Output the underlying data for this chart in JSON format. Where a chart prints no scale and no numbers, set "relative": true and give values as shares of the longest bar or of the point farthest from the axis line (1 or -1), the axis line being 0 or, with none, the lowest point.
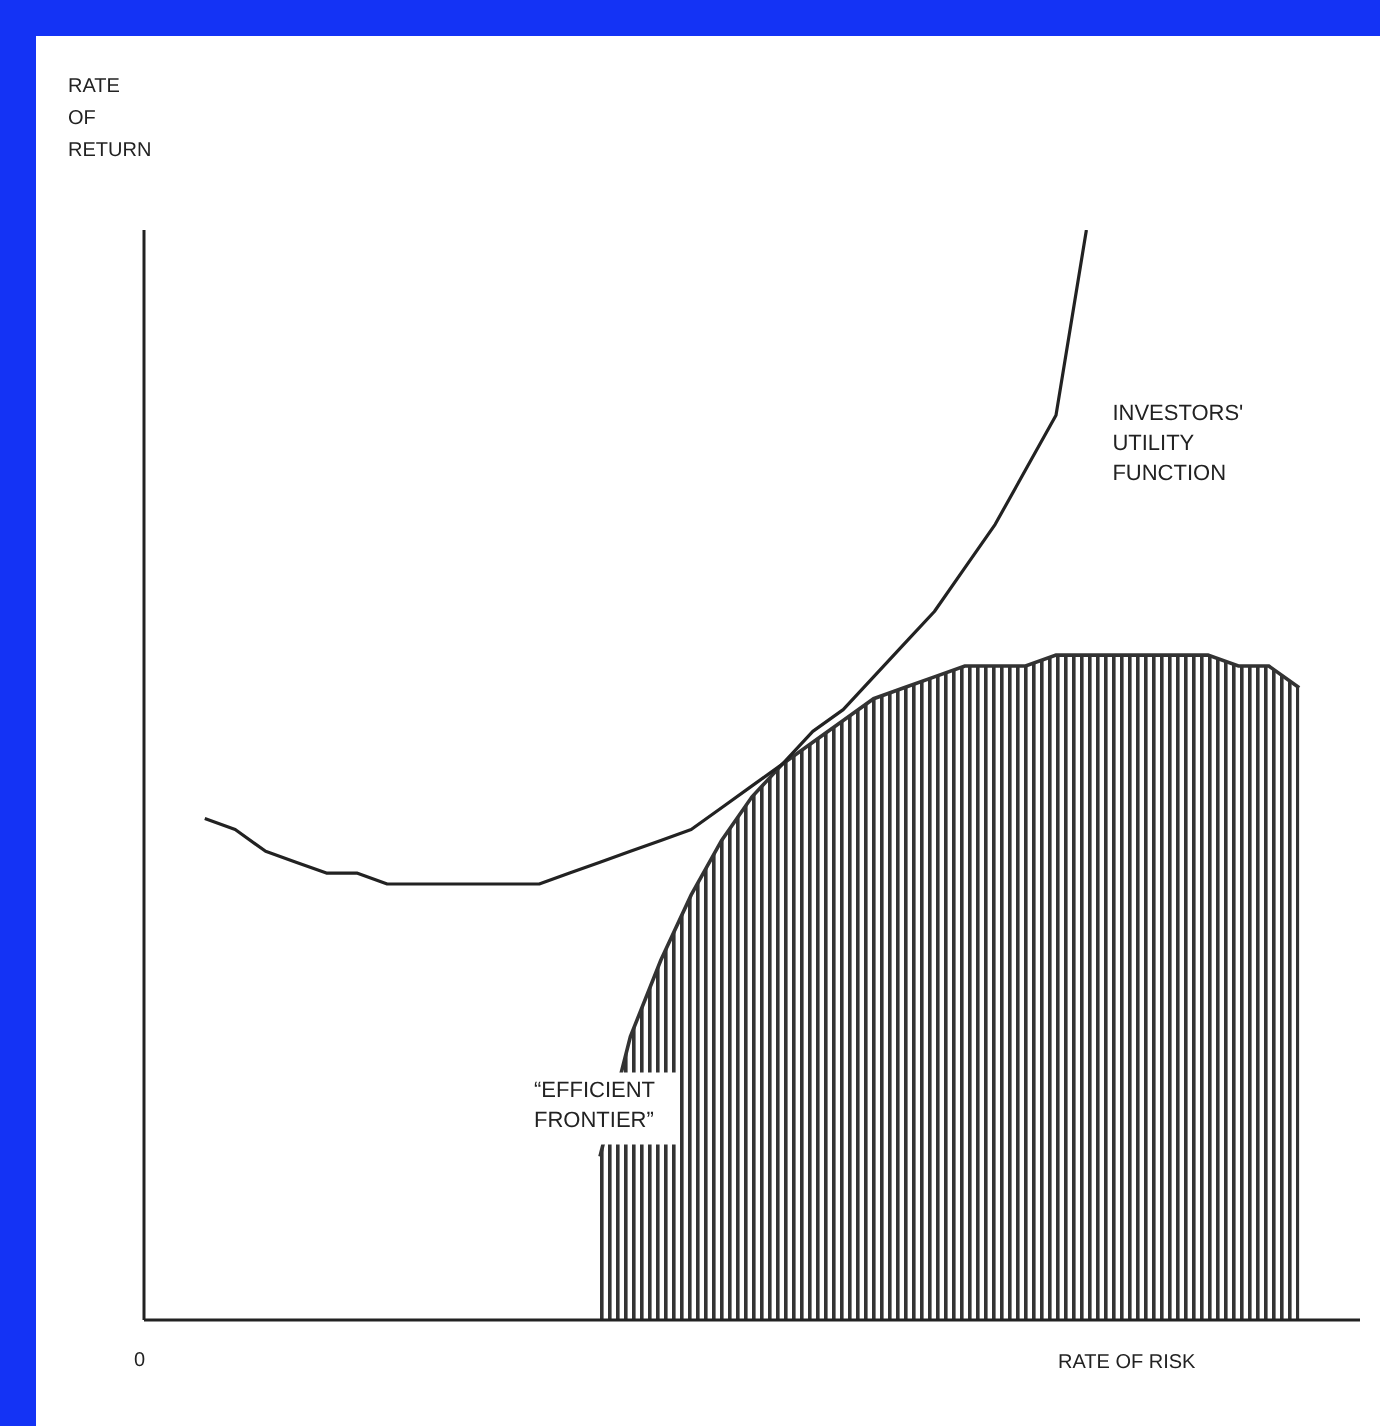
{
  "chart_data": {
    "type": "line",
    "relative": true,
    "xlabel": "RATE OF RISK",
    "ylabel": "RATE OF RETURN",
    "annotations": [
      "0"
    ],
    "categories": [
      null,
      null,
      null,
      null,
      null,
      null,
      null,
      null,
      null,
      null,
      null,
      null,
      null,
      null,
      null,
      null,
      null,
      null,
      null,
      null,
      null,
      null,
      null,
      null,
      null,
      null,
      null,
      null,
      null,
      null,
      null,
      null,
      null,
      null,
      null,
      null,
      null,
      null,
      null,
      null,
      null
    ],
    "series": [
      {
        "name": "“EFFICIENT FRONTIER”",
        "type": "area",
        "color": "#333333",
        "values": [
          null,
          null,
          null,
          null,
          null,
          null,
          null,
          null,
          null,
          null,
          null,
          null,
          null,
          null,
          null,
          0.15,
          0.26,
          0.33,
          0.39,
          0.44,
          0.48,
          0.51,
          0.53,
          0.55,
          0.57,
          0.58,
          0.59,
          0.6,
          0.6,
          0.6,
          0.61,
          0.61,
          0.61,
          0.61,
          0.61,
          0.61,
          0.6,
          0.6,
          0.58,
          null,
          null
        ]
      },
      {
        "name": "INVESTORS' UTILITY FUNCTION",
        "color": "#222222",
        "values": [
          null,
          null,
          0.46,
          0.45,
          0.43,
          0.42,
          0.41,
          0.41,
          0.4,
          0.4,
          0.4,
          0.4,
          0.4,
          0.4,
          0.41,
          0.42,
          0.43,
          0.44,
          0.45,
          0.47,
          0.49,
          0.51,
          0.54,
          0.56,
          0.59,
          0.62,
          0.65,
          0.69,
          0.73,
          0.78,
          0.83,
          1,
          null,
          null,
          null,
          null,
          null,
          null,
          null,
          null,
          null
        ]
      }
    ],
    "legend": false
  }
}
